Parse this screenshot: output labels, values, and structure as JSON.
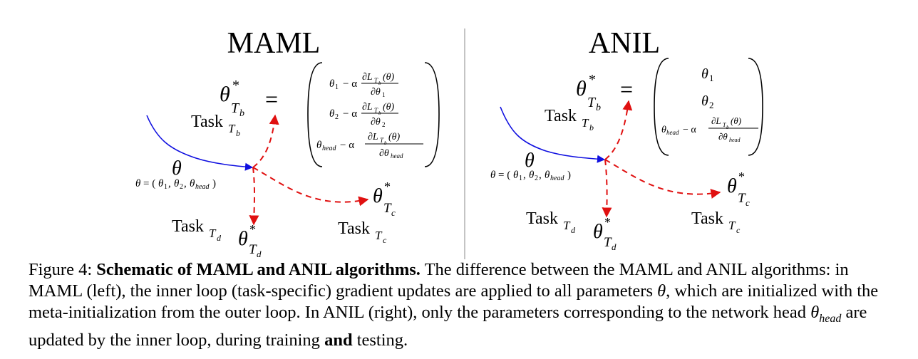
{
  "figure": {
    "left_title": "MAML",
    "right_title": "ANIL",
    "theta": "θ",
    "theta_def": "θ = (θ1, θ2, θhead)",
    "task_b": "Task",
    "task_c": "Task",
    "task_d": "Task",
    "sub_Tb": "Tb",
    "sub_Tc": "Tc",
    "sub_Td": "Td",
    "theta_star": "θ",
    "star": "*",
    "equals": "=",
    "maml_matrix": [
      "θ1 − α ∂LTb(θ) / ∂θ1",
      "θ2 − α ∂LTb(θ) / ∂θ2",
      "θhead − α ∂LTb(θ) / ∂θhead"
    ],
    "anil_matrix": [
      "θ1",
      "θ2",
      "θhead − α ∂LTb(θ) / ∂θhead"
    ],
    "colors": {
      "solid_path": "#1010e0",
      "dashed_path": "#e01010"
    }
  },
  "caption": {
    "label": "Figure 4:",
    "bold_title": "Schematic of MAML and ANIL algorithms.",
    "part1": " The difference between the MAML and ANIL algorithms: in MAML (left), the inner loop (task-specific) gradient updates are applied to all parameters ",
    "theta": "θ",
    "part2": ", which are initialized with the meta-initialization from the outer loop. In ANIL (right), only the parameters corresponding to the network head ",
    "theta_head_base": "θ",
    "theta_head_sub": "head",
    "part3": " are updated by the inner loop, during training ",
    "bold_and": "and",
    "part4": " testing."
  }
}
